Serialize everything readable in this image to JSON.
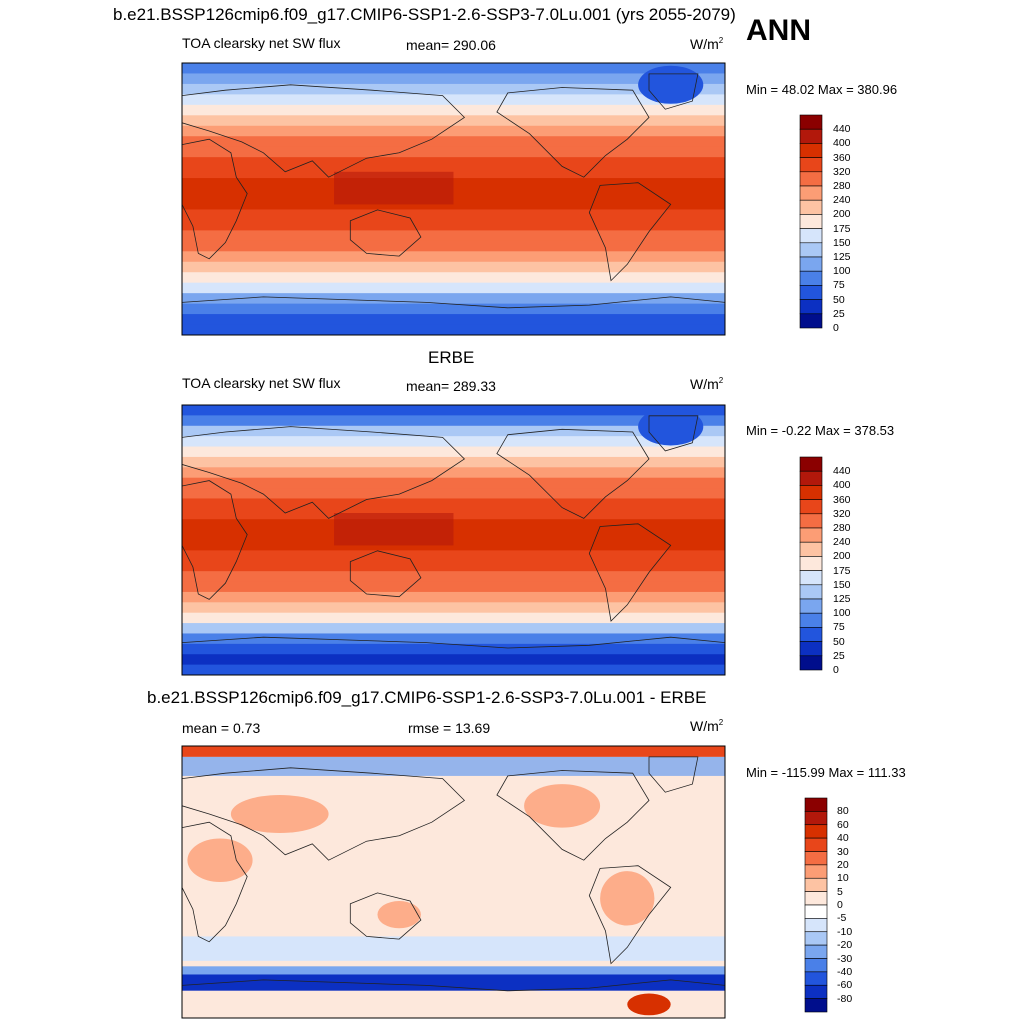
{
  "header": {
    "title": "b.e21.BSSP126cmip6.f09_g17.CMIP6-SSP1-2.6-SSP3-7.0Lu.001 (yrs 2055-2079)",
    "season": "ANN"
  },
  "panels": [
    {
      "id": "model",
      "heading": "",
      "variable": "TOA clearsky net SW flux",
      "stat_text": "mean= 290.06",
      "units_base": "W/m",
      "units_sup": "2",
      "minmax_text": "Min =  48.02 Max = 380.96",
      "colorbar_labels": [
        "440",
        "400",
        "360",
        "320",
        "280",
        "240",
        "200",
        "175",
        "150",
        "125",
        "100",
        "75",
        "50",
        "25",
        "0"
      ],
      "colors": [
        "#8b0000",
        "#b2180b",
        "#d73000",
        "#e8461a",
        "#f46d43",
        "#fc9d75",
        "#fdc3a3",
        "#fde8dc",
        "#d6e5fb",
        "#aac8f5",
        "#7aa6ef",
        "#4a80e8",
        "#2255dd",
        "#0c30c2",
        "#000e8c"
      ]
    },
    {
      "id": "obs",
      "heading": "ERBE",
      "variable": "TOA clearsky net SW flux",
      "stat_text": "mean= 289.33",
      "units_base": "W/m",
      "units_sup": "2",
      "minmax_text": "Min =  -0.22 Max = 378.53",
      "colorbar_labels": [
        "440",
        "400",
        "360",
        "320",
        "280",
        "240",
        "200",
        "175",
        "150",
        "125",
        "100",
        "75",
        "50",
        "25",
        "0"
      ],
      "colors": [
        "#8b0000",
        "#b2180b",
        "#d73000",
        "#e8461a",
        "#f46d43",
        "#fc9d75",
        "#fdc3a3",
        "#fde8dc",
        "#d6e5fb",
        "#aac8f5",
        "#7aa6ef",
        "#4a80e8",
        "#2255dd",
        "#0c30c2",
        "#000e8c"
      ]
    },
    {
      "id": "diff",
      "heading": "b.e21.BSSP126cmip6.f09_g17.CMIP6-SSP1-2.6-SSP3-7.0Lu.001 - ERBE",
      "variable": "",
      "mean_text": "mean =   0.73",
      "rmse_text": "rmse =  13.69",
      "units_base": "W/m",
      "units_sup": "2",
      "minmax_text": "Min = -115.99 Max = 111.33",
      "colorbar_labels": [
        "80",
        "60",
        "40",
        "30",
        "20",
        "10",
        "5",
        "0",
        "-5",
        "-10",
        "-20",
        "-30",
        "-40",
        "-60",
        "-80"
      ],
      "colors": [
        "#8b0000",
        "#b2180b",
        "#d73000",
        "#e8461a",
        "#f46d43",
        "#fc9d75",
        "#fdc3a3",
        "#fde8dc",
        "#ffffff",
        "#d6e5fb",
        "#aac8f5",
        "#7aa6ef",
        "#4a80e8",
        "#2255dd",
        "#0c30c2",
        "#000e8c"
      ]
    }
  ]
}
